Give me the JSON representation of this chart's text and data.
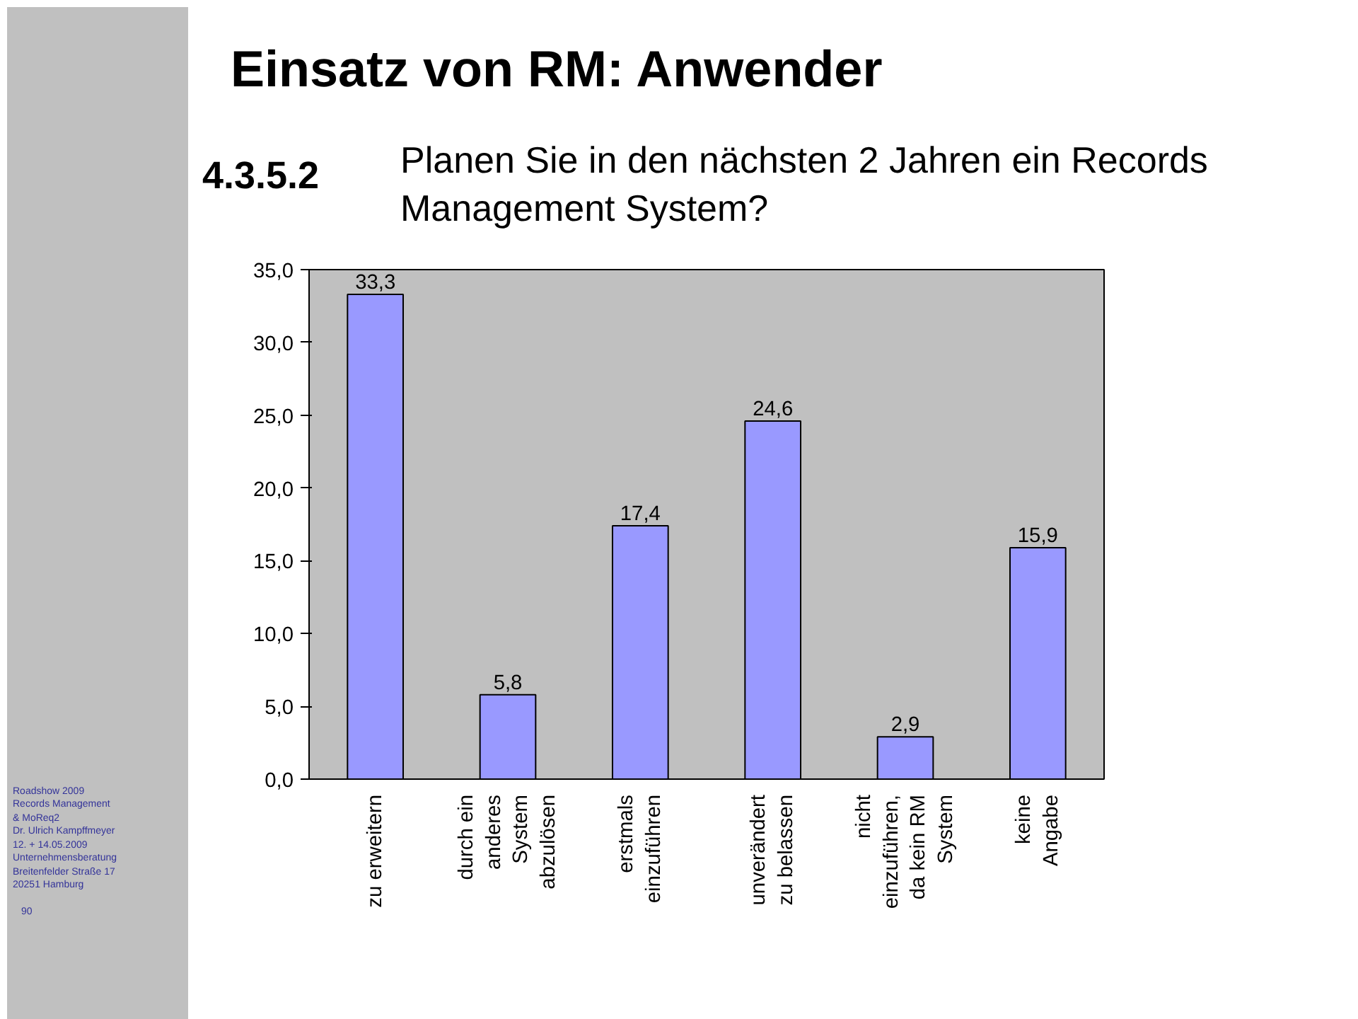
{
  "chart_data": {
    "type": "bar",
    "title": "Einsatz von RM: Anwender",
    "subtitle": "Planen Sie in den nächsten 2 Jahren ein Records Management System?",
    "categories": [
      "zu erweitern",
      "durch ein\nanderes\nSystem\nabzulösen",
      "erstmals\neinzuführen",
      "unverändert\nzu belassen",
      "nicht\neinzuführen,\nda kein RM\nSystem",
      "keine\nAngabe"
    ],
    "values": [
      33.3,
      5.8,
      17.4,
      24.6,
      2.9,
      15.9
    ],
    "value_labels": [
      "33,3",
      "5,8",
      "17,4",
      "24,6",
      "2,9",
      "15,9"
    ],
    "color": "#9999ff",
    "ylim": [
      0,
      35
    ],
    "yticks": [
      {
        "value": 0,
        "label": "0,0"
      },
      {
        "value": 5,
        "label": "5,0"
      },
      {
        "value": 10,
        "label": "10,0"
      },
      {
        "value": 15,
        "label": "15,0"
      },
      {
        "value": 20,
        "label": "20,0"
      },
      {
        "value": 25,
        "label": "25,0"
      },
      {
        "value": 30,
        "label": "30,0"
      },
      {
        "value": 35,
        "label": "35,0"
      }
    ],
    "annotations": [
      "4.3.5.2",
      "Roadshow 2009",
      "Records Management",
      "& MoReq2",
      "Dr. Ulrich Kampffmeyer",
      "12. + 14.05.2009",
      "Unternehmensberatung",
      "Breitenfelder Straße 17",
      "20251 Hamburg",
      "90"
    ]
  }
}
